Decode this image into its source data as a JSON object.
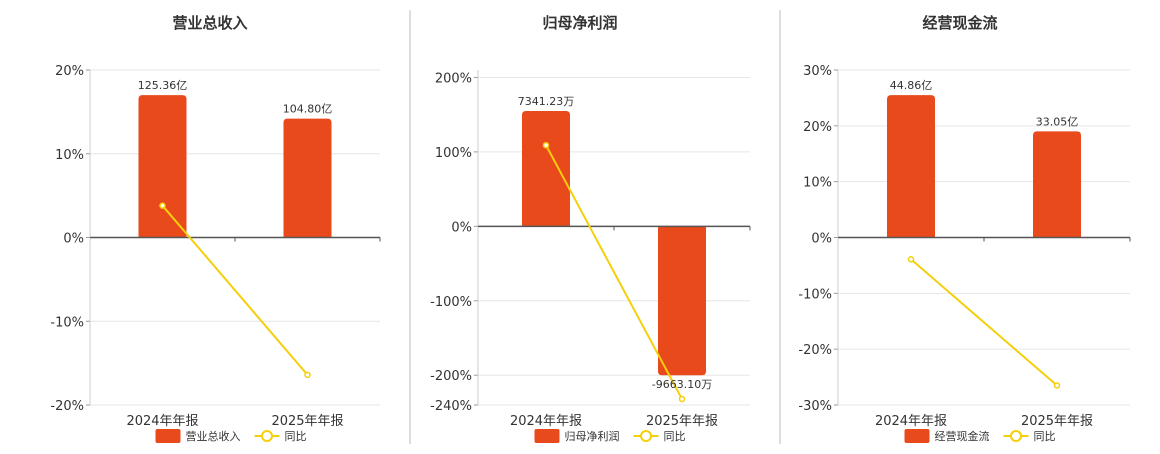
{
  "chart_data": [
    {
      "type": "bar",
      "title": "营业总收入",
      "categories": [
        "2024年年报",
        "2025年年报"
      ],
      "series": [
        {
          "name": "营业总收入",
          "type": "bar",
          "values": [
            17.0,
            14.2
          ],
          "labels": [
            "125.36亿",
            "104.80亿"
          ]
        },
        {
          "name": "同比",
          "type": "line",
          "values": [
            3.8,
            -16.4
          ]
        }
      ],
      "ylim": [
        -20,
        20
      ],
      "yticks": [
        20,
        10,
        0,
        -10,
        -20
      ],
      "ytick_labels": [
        "20%",
        "10%",
        "0%",
        "-10%",
        "-20%"
      ],
      "colors": {
        "bar": "#e84a1c",
        "line": "#f5cf0b"
      },
      "legend_position": "bottom"
    },
    {
      "type": "bar",
      "title": "归母净利润",
      "categories": [
        "2024年年报",
        "2025年年报"
      ],
      "series": [
        {
          "name": "归母净利润",
          "type": "bar",
          "values": [
            155,
            -200
          ],
          "labels": [
            "7341.23万",
            "-9663.10万"
          ]
        },
        {
          "name": "同比",
          "type": "line",
          "values": [
            109,
            -232
          ]
        }
      ],
      "ylim": [
        -240,
        210
      ],
      "yticks": [
        200,
        100,
        0,
        -100,
        -200,
        -240
      ],
      "ytick_labels": [
        "200%",
        "100%",
        "0%",
        "-100%",
        "-200%",
        "-240%"
      ],
      "colors": {
        "bar": "#e84a1c",
        "line": "#f5cf0b"
      },
      "legend_position": "bottom"
    },
    {
      "type": "bar",
      "title": "经营现金流",
      "categories": [
        "2024年年报",
        "2025年年报"
      ],
      "series": [
        {
          "name": "经营现金流",
          "type": "bar",
          "values": [
            25.5,
            19.0
          ],
          "labels": [
            "44.86亿",
            "33.05亿"
          ]
        },
        {
          "name": "同比",
          "type": "line",
          "values": [
            -3.9,
            -26.5
          ]
        }
      ],
      "ylim": [
        -30,
        30
      ],
      "yticks": [
        30,
        20,
        10,
        0,
        -10,
        -20,
        -30
      ],
      "ytick_labels": [
        "30%",
        "20%",
        "10%",
        "0%",
        "-10%",
        "-20%",
        "-30%"
      ],
      "colors": {
        "bar": "#e84a1c",
        "line": "#f5cf0b"
      },
      "legend_position": "bottom"
    }
  ]
}
